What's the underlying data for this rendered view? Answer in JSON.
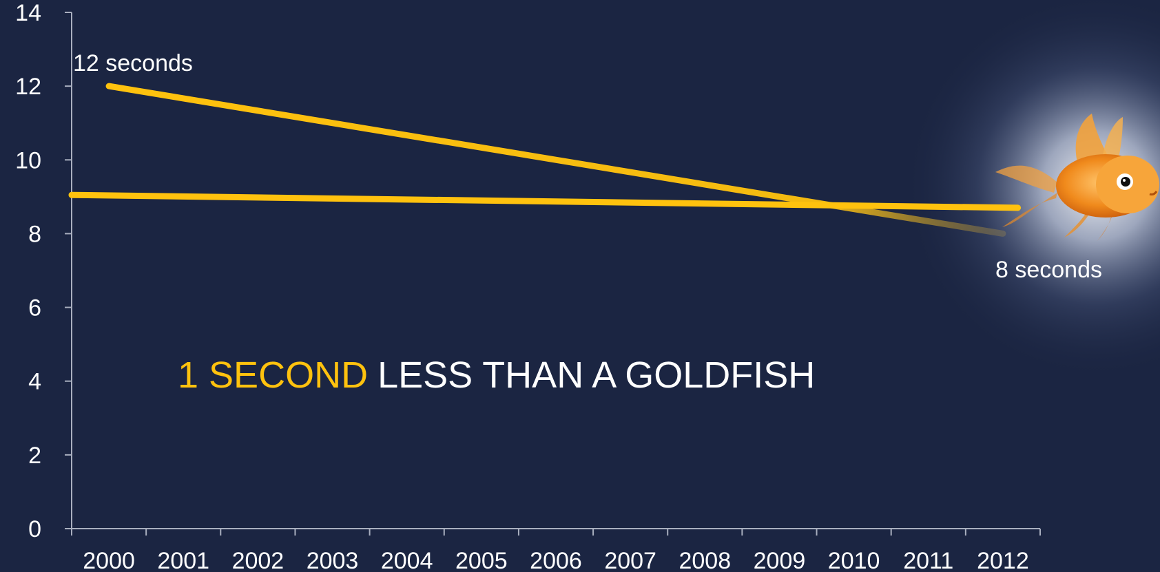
{
  "chart_data": {
    "type": "line",
    "title": "",
    "xlabel": "",
    "ylabel": "",
    "x": [
      "2000",
      "2001",
      "2002",
      "2003",
      "2004",
      "2005",
      "2006",
      "2007",
      "2008",
      "2009",
      "2010",
      "2011",
      "2012"
    ],
    "xlim": [
      2000,
      2012
    ],
    "ylim": [
      0,
      14
    ],
    "yticks": [
      0,
      2,
      4,
      6,
      8,
      10,
      12,
      14
    ],
    "grid": false,
    "legend": "none",
    "line_color": "#ffc20e",
    "series": [
      {
        "points": [
          [
            2000,
            12
          ],
          [
            2012,
            8
          ]
        ]
      },
      {
        "points": [
          [
            1999.5,
            9.05
          ],
          [
            2012.2,
            8.7
          ]
        ]
      }
    ],
    "annotations": {
      "start": {
        "text": "12 seconds",
        "x": 2000,
        "y": 12
      },
      "end": {
        "text": "8 seconds",
        "x": 2012,
        "y": 8
      }
    },
    "headline": {
      "accent": "1 SECOND",
      "rest": "LESS THAN A GOLDFISH",
      "accent_color": "#ffc20e",
      "rest_color": "#ffffff"
    },
    "goldfish": {
      "icon": "goldfish-icon"
    }
  }
}
